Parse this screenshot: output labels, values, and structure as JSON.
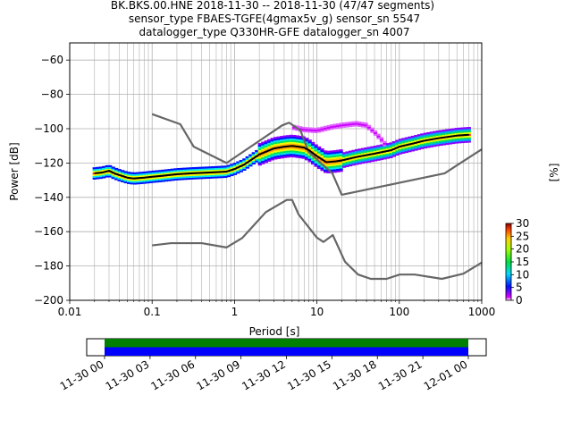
{
  "title": {
    "line1": "BK.BKS.00.HNE   2018-11-30 -- 2018-11-30  (47/47 segments)",
    "line2": "sensor_type FBAES-TGFE(4gmax5v_g) sensor_sn 5547",
    "line3": "datalogger_type Q330HR-GFE datalogger_sn 4007"
  },
  "chart_data": [
    {
      "type": "heatmap",
      "xlabel": "Period [s]",
      "ylabel": "Power [dB]",
      "xscale": "log",
      "xlim": [
        0.01,
        1000
      ],
      "ylim": [
        -200,
        -50
      ],
      "xticks": [
        0.01,
        0.1,
        1,
        10,
        100,
        1000
      ],
      "xticklabels": [
        "0.01",
        "0.1",
        "1",
        "10",
        "100",
        "1000"
      ],
      "yticks": [
        -200,
        -180,
        -160,
        -140,
        -120,
        -100,
        -80,
        -60
      ],
      "yticklabels": [
        "−200",
        "−180",
        "−160",
        "−140",
        "−120",
        "−100",
        "−80",
        "−60"
      ],
      "grid": true,
      "colorbar": {
        "label": "[%]",
        "range": [
          0,
          30
        ],
        "ticks": [
          "0",
          "5",
          "10",
          "15",
          "20",
          "25",
          "30"
        ]
      },
      "series": [
        {
          "role": "mode",
          "color": "#000000",
          "x": [
            0.02,
            0.025,
            0.03,
            0.035,
            0.04,
            0.05,
            0.06,
            0.08,
            0.1,
            0.13,
            0.2,
            0.3,
            0.5,
            0.8,
            1.0,
            1.3,
            2.0,
            3.0,
            4.0,
            5.0,
            6.0,
            7.0,
            8.0,
            10.0,
            13.0,
            17.0,
            20.0,
            30.0,
            50.0,
            80.0,
            100.0,
            150.0,
            200.0,
            300.0,
            500.0,
            700.0
          ],
          "y": [
            -126,
            -125.5,
            -124.5,
            -126,
            -127,
            -128.5,
            -129,
            -128.5,
            -128,
            -127.5,
            -126.5,
            -126,
            -125.5,
            -125,
            -123.5,
            -121,
            -115,
            -111.5,
            -110.5,
            -110,
            -110.5,
            -111,
            -112.5,
            -116,
            -119.5,
            -119,
            -118.5,
            -116.5,
            -114.5,
            -112.5,
            -110.5,
            -108.5,
            -107,
            -105.5,
            -104,
            -103.5
          ]
        }
      ],
      "noise_models": [
        {
          "name": "",
          "color": "#666666",
          "x": [
            0.1,
            0.22,
            0.32,
            0.8,
            3.8,
            4.6,
            6.3,
            7.9,
            15.4,
            20,
            354.8,
            1000
          ],
          "y": [
            -91.5,
            -97.4,
            -110.5,
            -120,
            -98,
            -96.5,
            -101,
            -113.5,
            -126,
            -138.5,
            -126,
            -112
          ]
        },
        {
          "name": "",
          "color": "#666666",
          "x": [
            0.1,
            0.17,
            0.4,
            0.8,
            1.24,
            2.4,
            4.3,
            5.0,
            6.0,
            10,
            12,
            15.6,
            21.9,
            31.6,
            45,
            70,
            101,
            154,
            328,
            600,
            1000
          ],
          "y": [
            -168,
            -166.7,
            -166.7,
            -169.2,
            -163.7,
            -148.6,
            -141.5,
            -141.5,
            -150,
            -163.5,
            -166,
            -162,
            -177.5,
            -185,
            -187.5,
            -187.5,
            -185,
            -185,
            -187.5,
            -184.5,
            -178
          ]
        }
      ],
      "pdf_cloud": {
        "note": "probability density of power per period bin (colour = %)",
        "center": "mode",
        "upper_branch": {
          "x": [
            5,
            7,
            10,
            15,
            20,
            30,
            40,
            50,
            60,
            70
          ],
          "y": [
            -99,
            -100.5,
            -101,
            -99,
            -98,
            -97,
            -98,
            -102,
            -106,
            -110
          ]
        }
      }
    },
    {
      "type": "timeline",
      "xticklabels": [
        "11-30 00",
        "11-30 03",
        "11-30 06",
        "11-30 09",
        "11-30 12",
        "11-30 15",
        "11-30 18",
        "11-30 21",
        "12-01 00"
      ],
      "coverage_rows": [
        {
          "color": "#008000",
          "start_hours": 0,
          "end_hours": 24
        },
        {
          "color": "#0000ff",
          "start_hours": 0,
          "end_hours": 24
        }
      ]
    }
  ]
}
